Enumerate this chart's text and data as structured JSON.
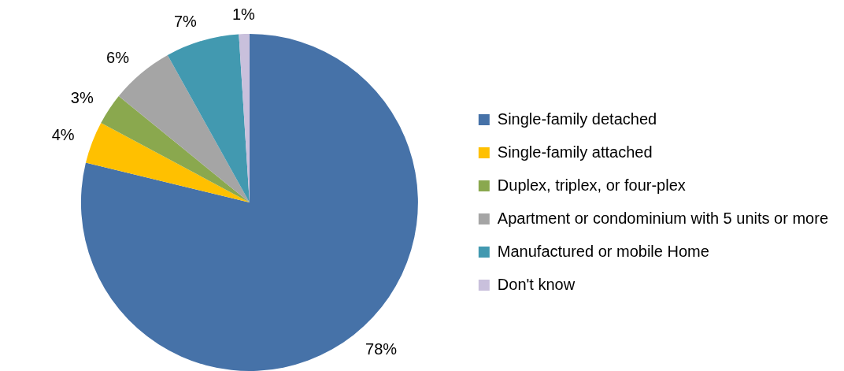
{
  "chart_data": {
    "type": "pie",
    "categories": [
      "Single-family detached",
      "Single-family attached",
      "Duplex, triplex, or four-plex",
      "Apartment or condominium with 5 units or more",
      "Manufactured or mobile Home",
      "Don't know"
    ],
    "values": [
      78,
      4,
      3,
      6,
      7,
      1
    ],
    "value_labels": [
      "78%",
      "4%",
      "3%",
      "6%",
      "7%",
      "1%"
    ],
    "colors": [
      "#4672a8",
      "#ffc000",
      "#8aa84e",
      "#a5a5a5",
      "#4299b0",
      "#c9c0dc"
    ],
    "legend": "right"
  }
}
